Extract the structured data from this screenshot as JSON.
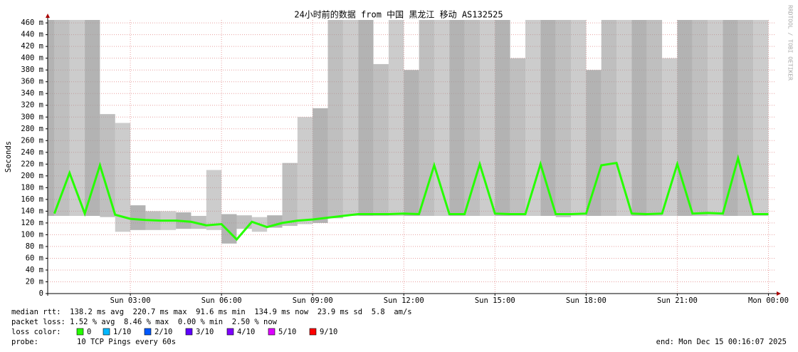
{
  "chart_data": {
    "type": "smokeping",
    "title": "24小时前的数据 from 中国 黑龙江 移动 AS132525",
    "y_label": "Seconds",
    "watermark": "RRDTOOL / TOBI OETIKER",
    "x": [
      0.5,
      1.0,
      1.5,
      2.0,
      2.5,
      3.0,
      3.5,
      4.0,
      4.5,
      5.0,
      5.5,
      6.0,
      6.5,
      7.0,
      7.5,
      8.0,
      8.5,
      9.0,
      9.5,
      10.0,
      10.5,
      11.0,
      11.5,
      12.0,
      12.5,
      13.0,
      13.5,
      14.0,
      14.5,
      15.0,
      15.5,
      16.0,
      16.5,
      17.0,
      17.5,
      18.0,
      18.5,
      19.0,
      19.5,
      20.0,
      20.5,
      21.0,
      21.5,
      22.0,
      22.5,
      23.0,
      23.5,
      24.0
    ],
    "median": [
      136,
      205,
      136,
      218,
      134,
      127,
      125,
      124,
      124,
      122,
      116,
      118,
      92,
      122,
      113,
      120,
      124,
      126,
      129,
      132,
      135,
      135,
      135,
      136,
      135,
      218,
      135,
      135,
      220,
      136,
      135,
      135,
      220,
      135,
      135,
      136,
      218,
      222,
      136,
      135,
      136,
      220,
      136,
      137,
      136,
      230,
      135,
      135
    ],
    "median_color": "#26ff00",
    "smoke_max": [
      465,
      465,
      465,
      465,
      305,
      290,
      150,
      140,
      140,
      138,
      132,
      210,
      135,
      133,
      130,
      133,
      222,
      300,
      315,
      465,
      465,
      465,
      390,
      465,
      380,
      465,
      465,
      465,
      465,
      465,
      465,
      400,
      465,
      465,
      465,
      465,
      380,
      465,
      465,
      465,
      465,
      400,
      465,
      465,
      465,
      465,
      465,
      465
    ],
    "smoke_min": [
      132,
      132,
      132,
      132,
      130,
      105,
      108,
      108,
      108,
      110,
      110,
      108,
      85,
      110,
      105,
      112,
      115,
      118,
      120,
      128,
      132,
      132,
      132,
      132,
      132,
      132,
      132,
      132,
      132,
      132,
      132,
      132,
      132,
      132,
      130,
      132,
      132,
      132,
      132,
      132,
      132,
      132,
      132,
      132,
      132,
      132,
      132,
      132
    ],
    "smoke_color": "#9a9a9a",
    "xlim": [
      0.28,
      24.2
    ],
    "xticks": [
      {
        "value": 3,
        "label": "Sun 03:00"
      },
      {
        "value": 6,
        "label": "Sun 06:00"
      },
      {
        "value": 9,
        "label": "Sun 09:00"
      },
      {
        "value": 12,
        "label": "Sun 12:00"
      },
      {
        "value": 15,
        "label": "Sun 15:00"
      },
      {
        "value": 18,
        "label": "Sun 18:00"
      },
      {
        "value": 21,
        "label": "Sun 21:00"
      },
      {
        "value": 24,
        "label": "Mon 00:00"
      }
    ],
    "ylim": [
      0,
      465
    ],
    "yticks": [
      0,
      {
        "value": 20,
        "label": "20 m"
      },
      {
        "value": 40,
        "label": "40 m"
      },
      {
        "value": 60,
        "label": "60 m"
      },
      {
        "value": 80,
        "label": "80 m"
      },
      {
        "value": 100,
        "label": "100 m"
      },
      {
        "value": 120,
        "label": "120 m"
      },
      {
        "value": 140,
        "label": "140 m"
      },
      {
        "value": 160,
        "label": "160 m"
      },
      {
        "value": 180,
        "label": "180 m"
      },
      {
        "value": 200,
        "label": "200 m"
      },
      {
        "value": 220,
        "label": "220 m"
      },
      {
        "value": 240,
        "label": "240 m"
      },
      {
        "value": 260,
        "label": "260 m"
      },
      {
        "value": 280,
        "label": "280 m"
      },
      {
        "value": 300,
        "label": "300 m"
      },
      {
        "value": 320,
        "label": "320 m"
      },
      {
        "value": 340,
        "label": "340 m"
      },
      {
        "value": 360,
        "label": "360 m"
      },
      {
        "value": 380,
        "label": "380 m"
      },
      {
        "value": 400,
        "label": "400 m"
      },
      {
        "value": 420,
        "label": "420 m"
      },
      {
        "value": 440,
        "label": "440 m"
      },
      {
        "value": 460,
        "label": "460 m"
      }
    ],
    "grid": true,
    "median_rtt": "median rtt:  138.2 ms avg  220.7 ms max  91.6 ms min  134.9 ms now  23.9 ms sd  5.8  am/s",
    "packet_loss": "packet loss: 1.52 % avg  8.46 % max  0.00 % min  2.50 % now",
    "loss_label": "loss color:",
    "loss_colors": [
      {
        "label": "0",
        "color": "#26ff00"
      },
      {
        "label": "1/10",
        "color": "#00b8ff"
      },
      {
        "label": "2/10",
        "color": "#0059ff"
      },
      {
        "label": "3/10",
        "color": "#5e00ff"
      },
      {
        "label": "4/10",
        "color": "#7e00ff"
      },
      {
        "label": "5/10",
        "color": "#dd00ff"
      },
      {
        "label": "9/10",
        "color": "#ff0000"
      }
    ],
    "probe_label": "probe:",
    "probe": "10 TCP Pings every 60s",
    "end": "end: Mon Dec 15 00:16:07 2025"
  }
}
